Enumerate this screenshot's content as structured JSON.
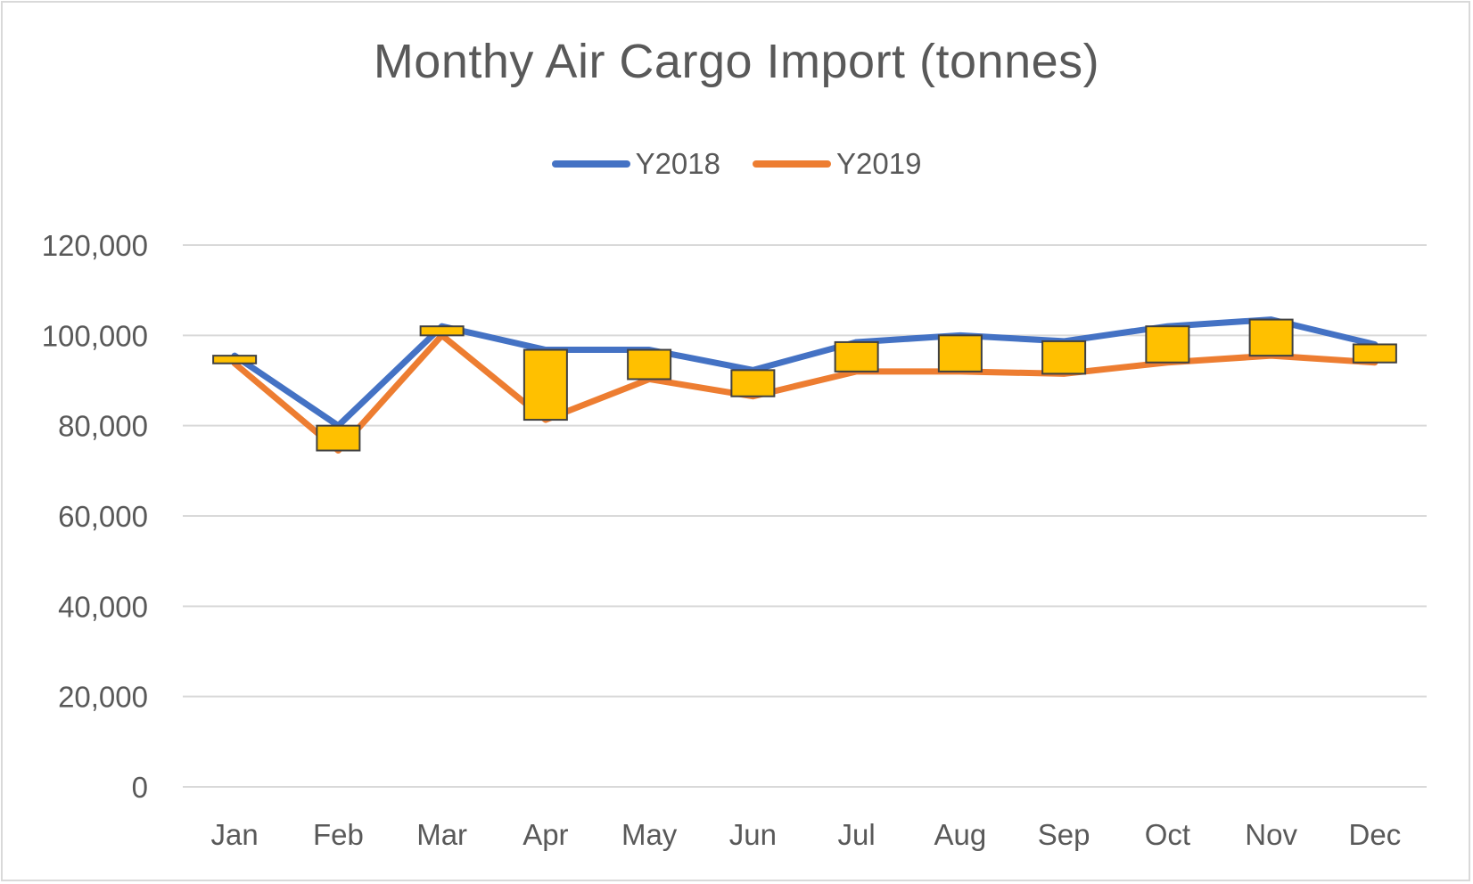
{
  "chart_data": {
    "type": "line",
    "title": "Monthy Air Cargo Import (tonnes)",
    "categories": [
      "Jan",
      "Feb",
      "Mar",
      "Apr",
      "May",
      "Jun",
      "Jul",
      "Aug",
      "Sep",
      "Oct",
      "Nov",
      "Dec"
    ],
    "series": [
      {
        "name": "Y2018",
        "color": "#4472c4",
        "values": [
          95500,
          80000,
          102000,
          96800,
          96800,
          92300,
          98500,
          100000,
          98700,
          102000,
          103500,
          98000
        ]
      },
      {
        "name": "Y2019",
        "color": "#ed7d31",
        "values": [
          93800,
          74500,
          100000,
          81300,
          90300,
          86500,
          92000,
          92000,
          91500,
          94000,
          95500,
          94000
        ]
      }
    ],
    "up_down_bars": {
      "color": "#ffc000",
      "border": "#404040"
    },
    "ylim": [
      0,
      120000
    ],
    "yticks": [
      0,
      20000,
      40000,
      60000,
      80000,
      100000,
      120000
    ],
    "ytick_labels": [
      "0",
      "20,000",
      "40,000",
      "60,000",
      "80,000",
      "100,000",
      "120,000"
    ],
    "xlabel": "",
    "ylabel": "",
    "grid": true,
    "legend_position": "top-center"
  }
}
